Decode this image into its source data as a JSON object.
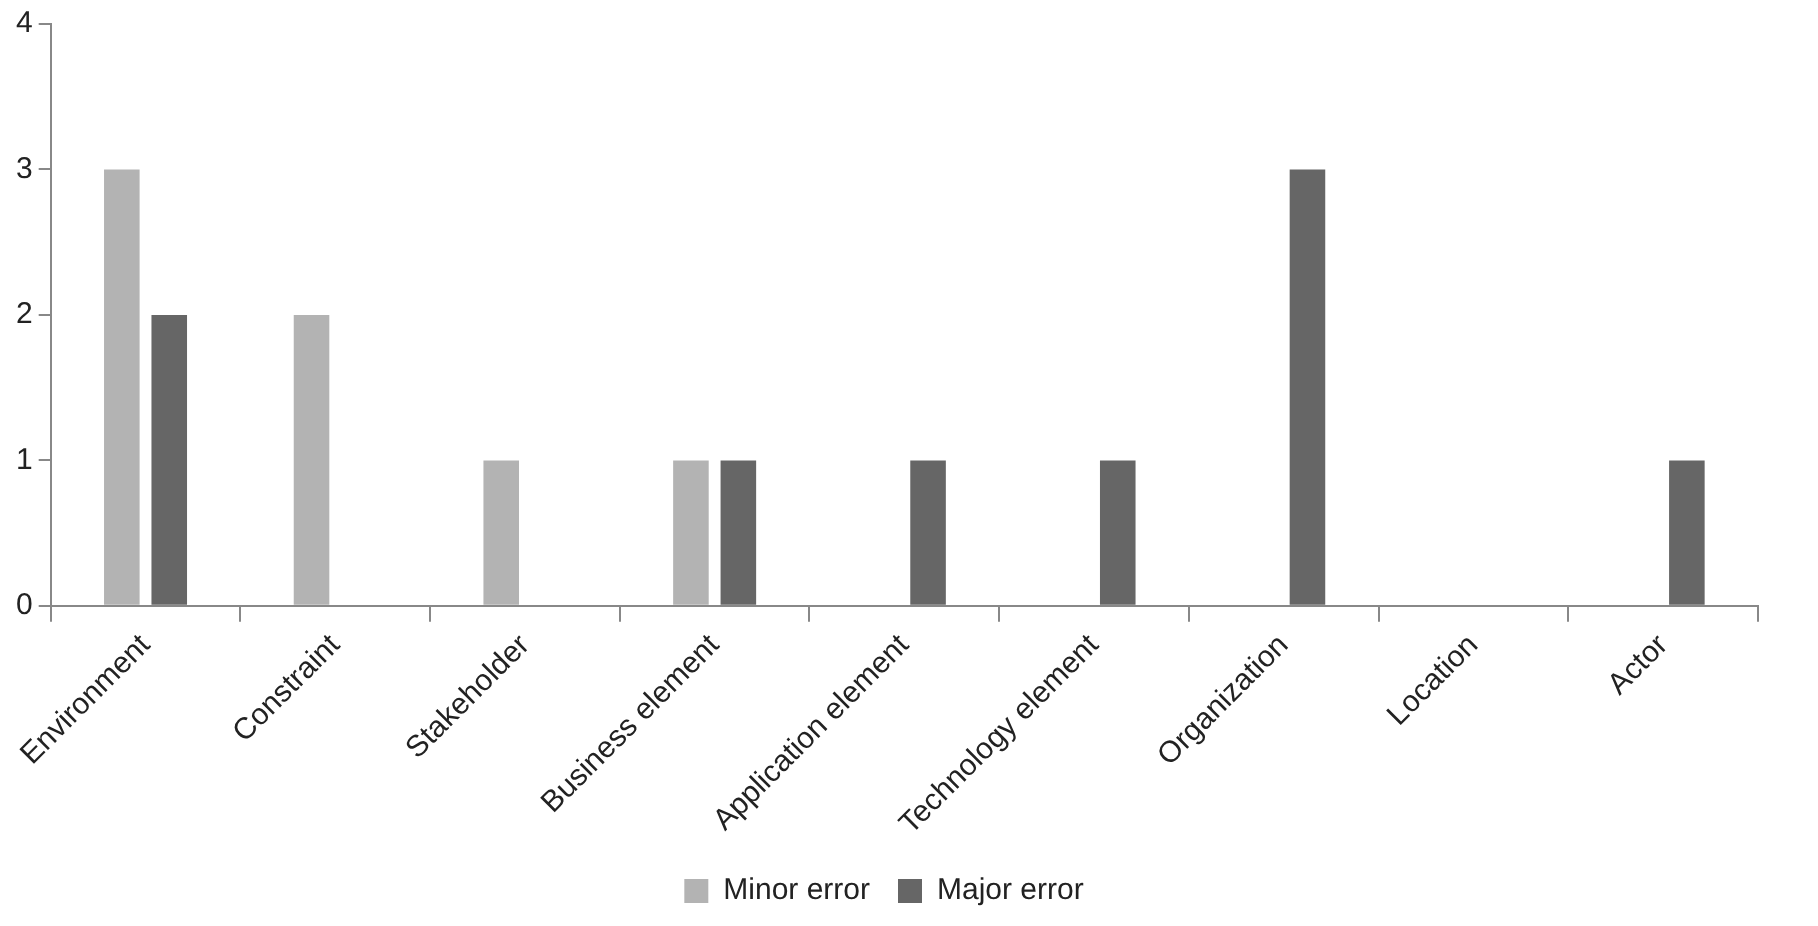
{
  "chart_data": {
    "type": "bar",
    "categories": [
      "Environment",
      "Constraint",
      "Stakeholder",
      "Business element",
      "Application element",
      "Technology element",
      "Organization",
      "Location",
      "Actor"
    ],
    "series": [
      {
        "name": "Minor error",
        "color": "#b3b3b3",
        "values": [
          3,
          2,
          1,
          1,
          0,
          0,
          0,
          0,
          0
        ]
      },
      {
        "name": "Major error",
        "color": "#666666",
        "values": [
          2,
          0,
          0,
          1,
          1,
          1,
          3,
          0,
          1
        ]
      }
    ],
    "ylim": [
      0,
      4
    ],
    "yticks": [
      0,
      1,
      2,
      3,
      4
    ],
    "grid": false,
    "legend": "bottom"
  }
}
